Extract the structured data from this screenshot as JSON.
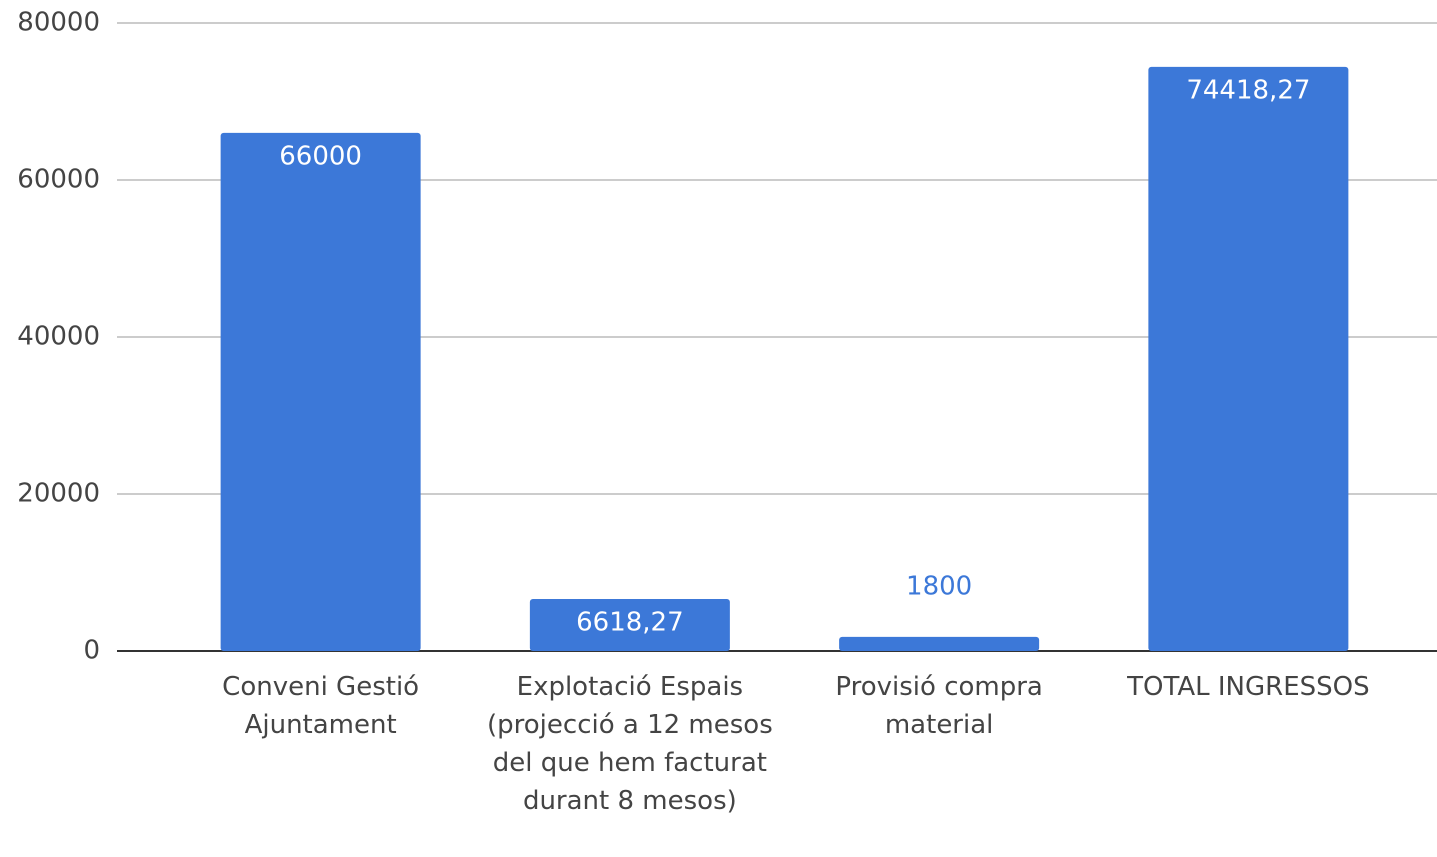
{
  "chart_data": {
    "type": "bar",
    "categories": [
      "Conveni Gestió Ajuntament",
      "Explotació Espais (projecció a 12 mesos del que hem facturat durant 8 mesos)",
      "Provisió compra material",
      "TOTAL INGRESSOS"
    ],
    "values": [
      66000,
      6618.27,
      1800,
      74418.27
    ],
    "value_labels": [
      "66000",
      "6618,27",
      "1800",
      "74418,27"
    ],
    "color": "#3c78d8",
    "ylim": [
      0,
      80000
    ],
    "yticks": [
      0,
      20000,
      40000,
      60000,
      80000
    ],
    "grid": true
  }
}
